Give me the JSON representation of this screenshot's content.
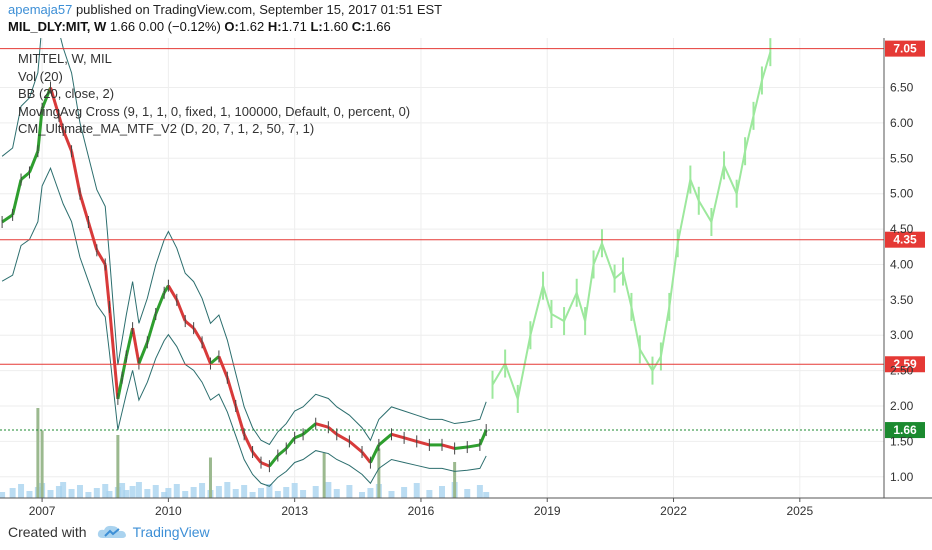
{
  "header": {
    "username": "apemaja57",
    "published": " published on TradingView.com, September 15, 2017 01:51 EST",
    "symbol": "MIL_DLY:MIT, W",
    "quote": "1.66 0.00 (−0.12%)",
    "o_label": "O:",
    "o_value": "1.62",
    "h_label": "H:",
    "h_value": "1.71",
    "l_label": "L:",
    "l_value": "1.60",
    "c_label": "C:",
    "c_value": "1.66"
  },
  "legend": {
    "title": "MITTEL, W, MIL",
    "items": [
      "Vol (20)",
      "BB (20, close, 2)",
      "MovingAvg Cross (9, 1, 1, 0, fixed, 1, 100000, Default, 0, percent, 0)",
      "CM_Ultimate_MA_MTF_V2 (D, 20, 7, 1, 2, 50, 7, 1)"
    ]
  },
  "footer": {
    "created_with": "Created with",
    "brand": "TradingView"
  },
  "colors": {
    "hline": "#e53935",
    "up": "#2e9e2e",
    "down": "#d83a3a",
    "projection": "#9de89d",
    "bband": "#2c6e6e",
    "volume": "#a9d3ef",
    "last_price": "#1b8a2f",
    "axis_text": "#333333"
  },
  "chart_data": {
    "type": "line",
    "title": "MITTEL, W, MIL",
    "xlabel": "",
    "ylabel": "",
    "xlim": [
      2006.0,
      2027.0
    ],
    "ylim": [
      0.7,
      7.2
    ],
    "x_ticks": [
      "2007",
      "2010",
      "2013",
      "2016",
      "2019",
      "2022",
      "2025"
    ],
    "y_ticks": [
      "1.00",
      "1.50",
      "2.00",
      "2.50",
      "3.00",
      "3.50",
      "4.00",
      "4.50",
      "5.00",
      "5.50",
      "6.00",
      "6.50"
    ],
    "horizontal_lines": [
      {
        "value": 7.05,
        "label": "7.05"
      },
      {
        "value": 4.35,
        "label": "4.35"
      },
      {
        "value": 2.59,
        "label": "2.59"
      }
    ],
    "last_price": {
      "value": 1.66,
      "label": "1.66"
    },
    "series": [
      {
        "role": "price",
        "x": [
          2006.05,
          2006.3,
          2006.5,
          2006.7,
          2006.9,
          2007.0,
          2007.2,
          2007.4,
          2007.5,
          2007.7,
          2007.9,
          2008.1,
          2008.3,
          2008.5,
          2008.6,
          2008.8,
          2008.9,
          2009.0,
          2009.15,
          2009.3,
          2009.5,
          2009.7,
          2009.9,
          2010.0,
          2010.2,
          2010.4,
          2010.6,
          2010.8,
          2011.0,
          2011.2,
          2011.4,
          2011.6,
          2011.8,
          2012.0,
          2012.2,
          2012.4,
          2012.6,
          2012.8,
          2013.0,
          2013.2,
          2013.5,
          2013.8,
          2014.0,
          2014.3,
          2014.6,
          2014.8,
          2015.0,
          2015.3,
          2015.6,
          2015.9,
          2016.2,
          2016.5,
          2016.8,
          2017.1,
          2017.4,
          2017.55
        ],
        "values": [
          4.6,
          4.7,
          5.2,
          5.3,
          5.6,
          6.2,
          6.5,
          6.1,
          5.9,
          5.6,
          5.0,
          4.6,
          4.2,
          4.0,
          3.4,
          2.1,
          2.4,
          2.7,
          3.1,
          2.6,
          2.9,
          3.3,
          3.6,
          3.7,
          3.5,
          3.2,
          3.1,
          2.9,
          2.6,
          2.7,
          2.4,
          2.0,
          1.6,
          1.35,
          1.2,
          1.15,
          1.3,
          1.4,
          1.55,
          1.6,
          1.75,
          1.7,
          1.6,
          1.5,
          1.35,
          1.2,
          1.45,
          1.6,
          1.55,
          1.5,
          1.45,
          1.45,
          1.4,
          1.42,
          1.45,
          1.66
        ]
      },
      {
        "role": "projection",
        "x": [
          2017.7,
          2018.0,
          2018.3,
          2018.6,
          2018.9,
          2019.1,
          2019.4,
          2019.7,
          2019.9,
          2020.1,
          2020.3,
          2020.6,
          2020.8,
          2021.0,
          2021.2,
          2021.5,
          2021.7,
          2021.9,
          2022.1,
          2022.4,
          2022.6,
          2022.9,
          2023.2,
          2023.5,
          2023.7,
          2023.9,
          2024.1,
          2024.3
        ],
        "values": [
          2.3,
          2.6,
          2.1,
          3.0,
          3.7,
          3.3,
          3.2,
          3.6,
          3.2,
          4.0,
          4.3,
          3.8,
          3.9,
          3.4,
          2.8,
          2.5,
          2.7,
          3.4,
          4.3,
          5.2,
          4.9,
          4.6,
          5.4,
          5.0,
          5.6,
          6.1,
          6.6,
          7.0
        ]
      }
    ],
    "volume_spikes": [
      {
        "x": 2006.9,
        "v": 1.0
      },
      {
        "x": 2007.0,
        "v": 0.75
      },
      {
        "x": 2008.8,
        "v": 0.7
      },
      {
        "x": 2011.0,
        "v": 0.45
      },
      {
        "x": 2013.7,
        "v": 0.5
      },
      {
        "x": 2015.0,
        "v": 0.55
      },
      {
        "x": 2016.8,
        "v": 0.4
      }
    ]
  }
}
